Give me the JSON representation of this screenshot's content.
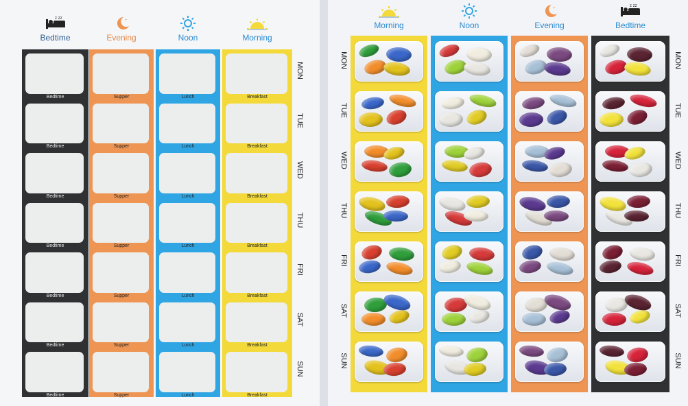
{
  "colors": {
    "bedtime": "#2f3133",
    "evening": "#ee9553",
    "noon": "#2fa5e4",
    "morning": "#f3d93a"
  },
  "left_chart": {
    "headers": [
      {
        "key": "bedtime",
        "label": "Bedtime",
        "icon": "bed-icon"
      },
      {
        "key": "evening",
        "label": "Evening",
        "icon": "moon-icon"
      },
      {
        "key": "noon",
        "label": "Noon",
        "icon": "sun-icon"
      },
      {
        "key": "morning",
        "label": "Morning",
        "icon": "sunrise-icon"
      }
    ],
    "captions": {
      "bedtime": "Bedtime",
      "evening": "Supper",
      "noon": "Lunch",
      "morning": "Breakfast"
    },
    "days": [
      "MON",
      "TUE",
      "WED",
      "THU",
      "FRI",
      "SAT",
      "SUN"
    ]
  },
  "right_chart": {
    "headers": [
      {
        "key": "morning",
        "label": "Morning",
        "icon": "sunrise-icon"
      },
      {
        "key": "noon",
        "label": "Noon",
        "icon": "sun-icon"
      },
      {
        "key": "evening",
        "label": "Evening",
        "icon": "moon-icon"
      },
      {
        "key": "bedtime",
        "label": "Bedtime",
        "icon": "bed-icon"
      }
    ],
    "days": [
      "MON",
      "TUE",
      "WED",
      "THU",
      "FRI",
      "SAT",
      "SUN"
    ],
    "bean_colors": {
      "morning": [
        "#2f9e3b",
        "#3a67c9",
        "#f28d2b",
        "#e3c21d",
        "#d8402f"
      ],
      "noon": [
        "#e1cc25",
        "#d63a3a",
        "#f0ecdf",
        "#9ed23b",
        "#e8e6e0"
      ],
      "evening": [
        "#5b3a8f",
        "#3a57a8",
        "#e2ddd5",
        "#7b4a80",
        "#a7c0d6"
      ],
      "bedtime": [
        "#d6233a",
        "#f2e23b",
        "#7b1f34",
        "#e9e7e2",
        "#5a2432"
      ]
    }
  }
}
